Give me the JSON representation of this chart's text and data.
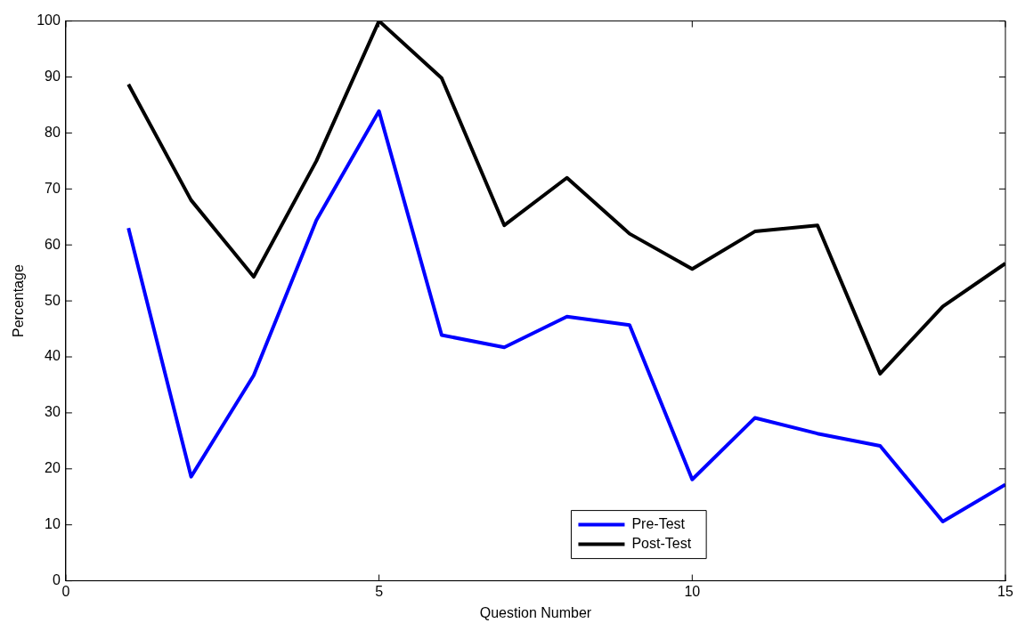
{
  "chart_data": {
    "type": "line",
    "xlabel": "Question Number",
    "ylabel": "Percentage",
    "x": [
      1,
      2,
      3,
      4,
      5,
      6,
      7,
      8,
      9,
      10,
      11,
      12,
      13,
      14,
      15
    ],
    "series": [
      {
        "name": "Pre-Test",
        "color": "#0000ff",
        "values": [
          63.0,
          18.6,
          36.7,
          64.4,
          83.9,
          43.9,
          41.7,
          47.2,
          45.7,
          18.1,
          29.1,
          26.3,
          24.1,
          10.6,
          17.2
        ]
      },
      {
        "name": "Post-Test",
        "color": "#000000",
        "values": [
          88.7,
          68.0,
          54.3,
          75.0,
          100,
          89.8,
          63.5,
          72.0,
          62.0,
          55.7,
          62.4,
          63.5,
          37.0,
          49.0,
          56.7
        ]
      }
    ],
    "xlim": [
      0,
      15
    ],
    "xticks": [
      0,
      5,
      10,
      15
    ],
    "ylim": [
      0,
      100
    ],
    "yticks": [
      0,
      10,
      20,
      30,
      40,
      50,
      60,
      70,
      80,
      90,
      100
    ],
    "grid": false,
    "legend": "bottom",
    "marker": "none",
    "line_style": "solid"
  }
}
